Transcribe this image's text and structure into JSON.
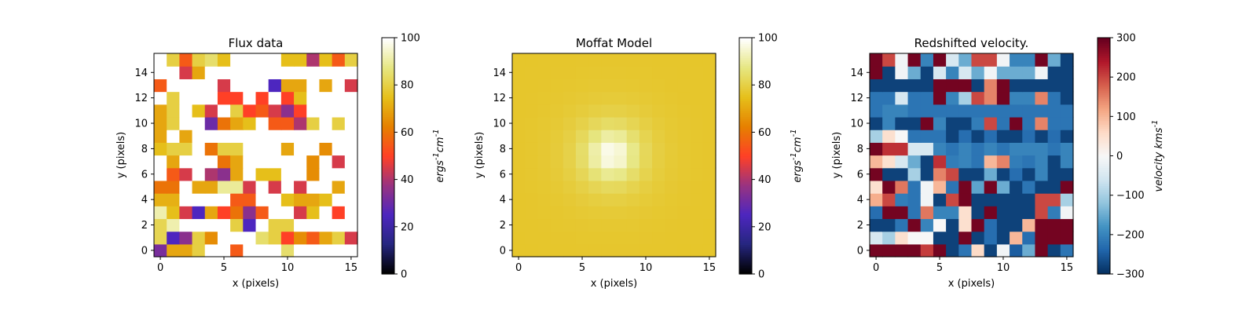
{
  "chart_data": [
    {
      "type": "heatmap",
      "title": "Flux data",
      "xlabel": "x (pixels)",
      "ylabel": "y (pixels)",
      "xlim": [
        -0.5,
        15.5
      ],
      "ylim": [
        -0.5,
        15.5
      ],
      "xticks": [
        0,
        5,
        10,
        15
      ],
      "yticks": [
        0,
        2,
        4,
        6,
        8,
        10,
        12,
        14
      ],
      "colormap": "CMRmap",
      "clim": [
        0,
        100
      ],
      "colorbar_label": "ergs^-1cm^-1",
      "colorbar_ticks": [
        0,
        20,
        40,
        60,
        80,
        100
      ],
      "grid": false,
      "z_rows_from_y0": [
        [
          32,
          70,
          70,
          80,
          null,
          null,
          55,
          null,
          null,
          null,
          85,
          null,
          null,
          null,
          null,
          null
        ],
        [
          82,
          25,
          35,
          80,
          65,
          null,
          null,
          null,
          85,
          80,
          50,
          65,
          55,
          70,
          80,
          45
        ],
        [
          82,
          92,
          null,
          null,
          null,
          null,
          80,
          25,
          null,
          80,
          80,
          null,
          null,
          null,
          null,
          null
        ],
        [
          92,
          75,
          45,
          25,
          70,
          50,
          60,
          35,
          55,
          null,
          null,
          45,
          75,
          null,
          50,
          null
        ],
        [
          72,
          72,
          null,
          null,
          null,
          null,
          55,
          55,
          null,
          null,
          75,
          70,
          70,
          75,
          null,
          null
        ],
        [
          60,
          60,
          null,
          70,
          70,
          90,
          90,
          45,
          null,
          45,
          null,
          45,
          null,
          null,
          70,
          null
        ],
        [
          null,
          55,
          45,
          null,
          40,
          35,
          70,
          null,
          75,
          75,
          null,
          null,
          65,
          null,
          null,
          null
        ],
        [
          null,
          70,
          null,
          null,
          null,
          60,
          70,
          null,
          null,
          null,
          null,
          null,
          65,
          null,
          45,
          null
        ],
        [
          75,
          80,
          80,
          null,
          60,
          80,
          80,
          null,
          null,
          null,
          70,
          null,
          null,
          65,
          null,
          null
        ],
        [
          70,
          null,
          70,
          null,
          null,
          null,
          null,
          null,
          null,
          null,
          null,
          null,
          null,
          null,
          null,
          null
        ],
        [
          70,
          80,
          null,
          null,
          30,
          60,
          70,
          75,
          null,
          55,
          55,
          40,
          80,
          null,
          80,
          null
        ],
        [
          70,
          80,
          null,
          75,
          45,
          null,
          80,
          50,
          55,
          45,
          35,
          50,
          null,
          null,
          null,
          null
        ],
        [
          null,
          80,
          null,
          null,
          null,
          50,
          50,
          null,
          50,
          null,
          50,
          75,
          null,
          null,
          null,
          null
        ],
        [
          55,
          null,
          null,
          null,
          null,
          45,
          null,
          null,
          null,
          25,
          70,
          70,
          null,
          70,
          null,
          45
        ],
        [
          null,
          null,
          45,
          70,
          null,
          null,
          null,
          null,
          null,
          null,
          null,
          null,
          null,
          null,
          null,
          null
        ],
        [
          null,
          80,
          55,
          80,
          85,
          75,
          null,
          null,
          null,
          null,
          75,
          75,
          40,
          75,
          55,
          80
        ]
      ]
    },
    {
      "type": "heatmap",
      "title": "Moffat Model",
      "xlabel": "x (pixels)",
      "ylabel": "y (pixels)",
      "xlim": [
        -0.5,
        15.5
      ],
      "ylim": [
        -0.5,
        15.5
      ],
      "xticks": [
        0,
        5,
        10,
        15
      ],
      "yticks": [
        0,
        2,
        4,
        6,
        8,
        10,
        12,
        14
      ],
      "colormap": "CMRmap",
      "clim": [
        0,
        100
      ],
      "colorbar_label": "ergs^-1cm^-1",
      "colorbar_ticks": [
        0,
        20,
        40,
        60,
        80,
        100
      ],
      "grid": false,
      "model": {
        "kind": "moffat",
        "center": [
          7.3,
          7.6
        ],
        "amplitude": 22,
        "background": 77,
        "alpha": 2.8,
        "beta": 2.0
      }
    },
    {
      "type": "heatmap",
      "title": "Redshifted velocity.",
      "xlabel": "x (pixels)",
      "ylabel": "y (pixels)",
      "xlim": [
        -0.5,
        15.5
      ],
      "ylim": [
        -0.5,
        15.5
      ],
      "xticks": [
        0,
        5,
        10,
        15
      ],
      "yticks": [
        0,
        2,
        4,
        6,
        8,
        10,
        12,
        14
      ],
      "colormap": "RdBu_r",
      "clim": [
        -300,
        300
      ],
      "colorbar_label": "velocity kms^-1",
      "colorbar_ticks": [
        -300,
        -200,
        -100,
        0,
        100,
        200,
        300
      ],
      "grid": false,
      "z_rows_from_y0": [
        [
          290,
          290,
          290,
          290,
          210,
          290,
          -280,
          -220,
          60,
          -280,
          -10,
          -250,
          -150,
          290,
          -280,
          -220
        ],
        [
          -50,
          -100,
          50,
          0,
          0,
          -280,
          -280,
          290,
          -280,
          -230,
          -280,
          100,
          -230,
          290,
          290,
          290
        ],
        [
          -280,
          -280,
          -220,
          290,
          -200,
          0,
          -280,
          50,
          290,
          -230,
          -280,
          -280,
          100,
          290,
          290,
          290
        ],
        [
          -230,
          290,
          290,
          -220,
          160,
          -200,
          -200,
          50,
          -280,
          290,
          -280,
          -280,
          -280,
          200,
          -210,
          -10
        ],
        [
          110,
          200,
          -210,
          -220,
          -10,
          -280,
          200,
          290,
          -280,
          -280,
          -280,
          -280,
          -280,
          200,
          200,
          -100
        ],
        [
          50,
          290,
          160,
          -220,
          -10,
          100,
          -220,
          290,
          -160,
          290,
          -150,
          -280,
          -220,
          -280,
          -280,
          290
        ],
        [
          290,
          -280,
          -280,
          -100,
          -280,
          150,
          200,
          -280,
          -280,
          -150,
          -280,
          -230,
          -280,
          -200,
          -280,
          -280
        ],
        [
          100,
          50,
          -50,
          -150,
          -280,
          220,
          -210,
          -200,
          -220,
          100,
          150,
          -210,
          -220,
          -200,
          -280,
          -200
        ],
        [
          290,
          220,
          220,
          -50,
          -50,
          -200,
          -220,
          -200,
          -220,
          -200,
          -220,
          -200,
          -200,
          -200,
          -220,
          -200
        ],
        [
          -100,
          50,
          0,
          -220,
          -220,
          -220,
          -280,
          -230,
          -280,
          -230,
          -280,
          -280,
          -230,
          -280,
          -230,
          -280
        ],
        [
          -280,
          -200,
          -280,
          -280,
          290,
          -200,
          -280,
          -280,
          -210,
          200,
          -220,
          290,
          -220,
          150,
          -220,
          -220
        ],
        [
          -220,
          -200,
          -200,
          -220,
          -220,
          -220,
          -220,
          -220,
          -220,
          -220,
          -220,
          -220,
          -220,
          -220,
          -220,
          -220
        ],
        [
          -220,
          -220,
          -50,
          -220,
          -220,
          290,
          -200,
          -100,
          200,
          150,
          290,
          -200,
          -200,
          150,
          -220,
          -280
        ],
        [
          -280,
          -280,
          -280,
          -280,
          -280,
          290,
          290,
          290,
          -280,
          150,
          290,
          -280,
          -280,
          -280,
          -280,
          -280
        ],
        [
          290,
          -280,
          -10,
          -150,
          -280,
          -50,
          -200,
          -50,
          -150,
          -10,
          -150,
          -150,
          -150,
          -10,
          -280,
          -280
        ],
        [
          290,
          200,
          -10,
          290,
          -200,
          290,
          -50,
          -150,
          200,
          200,
          -10,
          -200,
          -200,
          290,
          -150,
          -280
        ]
      ]
    }
  ]
}
